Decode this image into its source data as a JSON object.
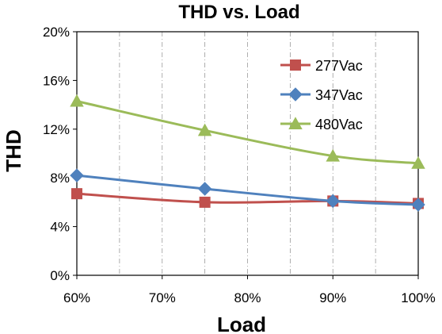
{
  "chart_data": {
    "type": "line",
    "title": "THD vs. Load",
    "xlabel": "Load",
    "ylabel": "THD",
    "x": [
      60,
      75,
      90,
      100
    ],
    "xlim": [
      60,
      100
    ],
    "ylim": [
      0,
      20
    ],
    "x_ticks": [
      "60%",
      "70%",
      "80%",
      "90%",
      "100%"
    ],
    "y_ticks": [
      "0%",
      "4%",
      "8%",
      "12%",
      "16%",
      "20%"
    ],
    "grid": "vertical dash-dot",
    "legend_position": "top-right",
    "series": [
      {
        "name": "277Vac",
        "values": [
          6.7,
          6.0,
          6.1,
          5.9
        ],
        "color": "#c0504d",
        "marker": "square"
      },
      {
        "name": "347Vac",
        "values": [
          8.2,
          7.1,
          6.1,
          5.8
        ],
        "color": "#4f81bd",
        "marker": "diamond"
      },
      {
        "name": "480Vac",
        "values": [
          14.3,
          11.9,
          9.8,
          9.2
        ],
        "color": "#9bbb59",
        "marker": "triangle"
      }
    ]
  }
}
